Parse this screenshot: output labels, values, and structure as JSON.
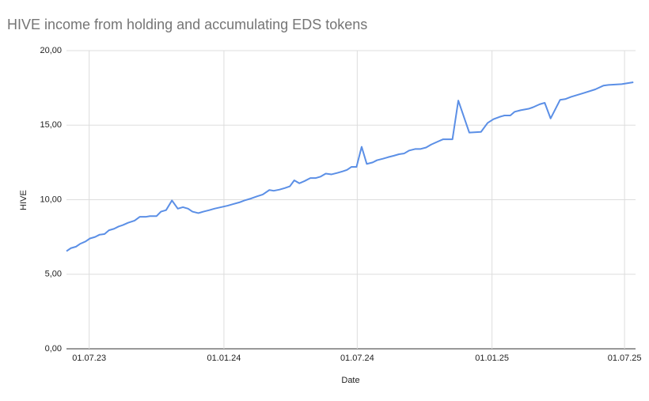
{
  "chart_data": {
    "type": "line",
    "title": "HIVE income from holding and accumulating EDS tokens",
    "x_label": "Date",
    "y_label": "HIVE",
    "x": [
      "2023-05-31",
      "2023-06-06",
      "2023-06-13",
      "2023-06-19",
      "2023-06-26",
      "2023-07-02",
      "2023-07-09",
      "2023-07-15",
      "2023-07-22",
      "2023-07-28",
      "2023-08-04",
      "2023-08-10",
      "2023-08-16",
      "2023-08-23",
      "2023-09-01",
      "2023-09-08",
      "2023-09-16",
      "2023-09-22",
      "2023-10-01",
      "2023-10-07",
      "2023-10-14",
      "2023-10-22",
      "2023-10-30",
      "2023-11-06",
      "2023-11-13",
      "2023-11-19",
      "2023-11-27",
      "2023-12-04",
      "2023-12-12",
      "2023-12-19",
      "2023-12-28",
      "2024-01-06",
      "2024-01-13",
      "2024-01-22",
      "2024-01-29",
      "2024-02-07",
      "2024-02-15",
      "2024-02-23",
      "2024-03-03",
      "2024-03-09",
      "2024-03-17",
      "2024-03-24",
      "2024-03-31",
      "2024-04-06",
      "2024-04-13",
      "2024-04-20",
      "2024-04-28",
      "2024-05-05",
      "2024-05-12",
      "2024-05-19",
      "2024-05-27",
      "2024-06-04",
      "2024-06-11",
      "2024-06-17",
      "2024-06-23",
      "2024-06-30",
      "2024-07-07",
      "2024-07-14",
      "2024-07-22",
      "2024-07-28",
      "2024-08-05",
      "2024-08-12",
      "2024-08-20",
      "2024-08-27",
      "2024-09-03",
      "2024-09-10",
      "2024-09-18",
      "2024-09-25",
      "2024-10-03",
      "2024-10-10",
      "2024-10-19",
      "2024-10-26",
      "2024-11-08",
      "2024-11-16",
      "2024-12-01",
      "2024-12-17",
      "2024-12-26",
      "2025-01-03",
      "2025-01-11",
      "2025-01-18",
      "2025-01-26",
      "2025-02-01",
      "2025-02-09",
      "2025-02-20",
      "2025-02-26",
      "2025-03-07",
      "2025-03-14",
      "2025-03-22",
      "2025-04-04",
      "2025-04-11",
      "2025-04-19",
      "2025-05-06",
      "2025-05-22",
      "2025-06-02",
      "2025-06-09",
      "2025-06-27",
      "2025-07-13"
    ],
    "series": [
      {
        "name": "HIVE",
        "color": "#5b8fe6",
        "values": [
          6.55,
          6.75,
          6.85,
          7.05,
          7.2,
          7.4,
          7.5,
          7.65,
          7.7,
          7.95,
          8.05,
          8.2,
          8.3,
          8.45,
          8.6,
          8.85,
          8.85,
          8.9,
          8.9,
          9.2,
          9.3,
          9.95,
          9.4,
          9.5,
          9.4,
          9.2,
          9.1,
          9.2,
          9.3,
          9.4,
          9.5,
          9.6,
          9.7,
          9.82,
          9.95,
          10.08,
          10.22,
          10.35,
          10.65,
          10.6,
          10.68,
          10.78,
          10.9,
          11.3,
          11.1,
          11.25,
          11.45,
          11.45,
          11.55,
          11.75,
          11.7,
          11.8,
          11.9,
          12.0,
          12.2,
          12.2,
          13.55,
          12.4,
          12.5,
          12.65,
          12.75,
          12.85,
          12.95,
          13.05,
          13.1,
          13.3,
          13.4,
          13.4,
          13.5,
          13.7,
          13.9,
          14.05,
          14.05,
          16.65,
          14.5,
          14.55,
          15.15,
          15.4,
          15.55,
          15.65,
          15.65,
          15.9,
          16.0,
          16.1,
          16.2,
          16.4,
          16.5,
          15.45,
          16.7,
          16.75,
          16.9,
          17.15,
          17.4,
          17.65,
          17.7,
          17.75,
          17.88
        ]
      }
    ],
    "xlim": [
      "2023-05-31",
      "2025-07-16"
    ],
    "xticks": [
      {
        "value": "2023-07-01",
        "label": "01.07.23"
      },
      {
        "value": "2024-01-01",
        "label": "01.01.24"
      },
      {
        "value": "2024-07-01",
        "label": "01.07.24"
      },
      {
        "value": "2025-01-01",
        "label": "01.01.25"
      },
      {
        "value": "2025-07-01",
        "label": "01.07.25"
      }
    ],
    "ylim": [
      0,
      20
    ],
    "yticks": [
      {
        "value": 0,
        "label": "0,00"
      },
      {
        "value": 5,
        "label": "5,00"
      },
      {
        "value": 10,
        "label": "10,00"
      },
      {
        "value": 15,
        "label": "15,00"
      },
      {
        "value": 20,
        "label": "20,00"
      }
    ],
    "grid": true
  }
}
